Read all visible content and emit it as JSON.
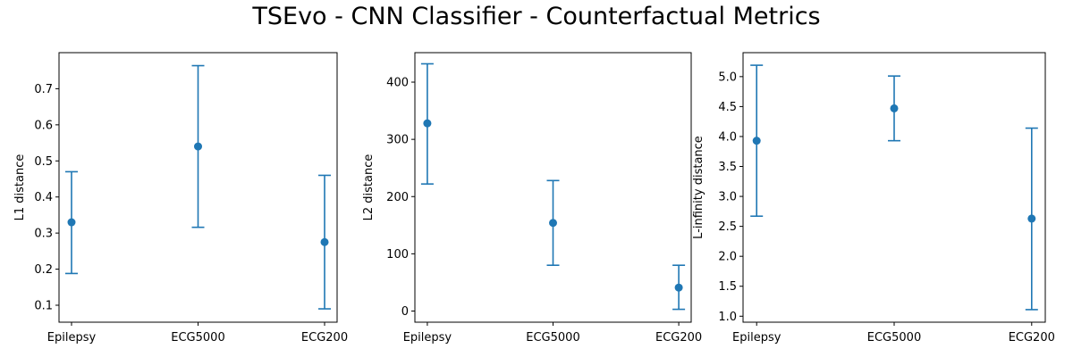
{
  "figure": {
    "title": "TSEvo - CNN Classifier - Counterfactual Metrics"
  },
  "colors": {
    "series": "#1f77b4",
    "axis": "#000000"
  },
  "chart_data": [
    {
      "type": "scatter",
      "ylabel": "L1 distance",
      "categories": [
        "Epilepsy",
        "ECG5000",
        "ECG200"
      ],
      "values": [
        0.33,
        0.54,
        0.275
      ],
      "error_low": [
        0.188,
        0.316,
        0.09
      ],
      "error_high": [
        0.47,
        0.764,
        0.46
      ],
      "ylim": [
        0.053,
        0.8
      ],
      "yticks": [
        0.1,
        0.2,
        0.3,
        0.4,
        0.5,
        0.6,
        0.7
      ],
      "ytick_labels": [
        "0.1",
        "0.2",
        "0.3",
        "0.4",
        "0.5",
        "0.6",
        "0.7"
      ],
      "grid": false
    },
    {
      "type": "scatter",
      "ylabel": "L2 distance",
      "categories": [
        "Epilepsy",
        "ECG5000",
        "ECG200"
      ],
      "values": [
        328,
        154,
        41
      ],
      "error_low": [
        222,
        80,
        3
      ],
      "error_high": [
        432,
        228,
        80
      ],
      "ylim": [
        -19.5,
        451.5
      ],
      "yticks": [
        0,
        100,
        200,
        300,
        400
      ],
      "ytick_labels": [
        "0",
        "100",
        "200",
        "300",
        "400"
      ],
      "grid": false
    },
    {
      "type": "scatter",
      "ylabel": "L-infinity distance",
      "categories": [
        "Epilepsy",
        "ECG5000",
        "ECG200"
      ],
      "values": [
        3.93,
        4.47,
        2.63
      ],
      "error_low": [
        2.67,
        3.93,
        1.11
      ],
      "error_high": [
        5.19,
        5.01,
        4.14
      ],
      "ylim": [
        0.9,
        5.4
      ],
      "yticks": [
        1.0,
        1.5,
        2.0,
        2.5,
        3.0,
        3.5,
        4.0,
        4.5,
        5.0
      ],
      "ytick_labels": [
        "1.0",
        "1.5",
        "2.0",
        "2.5",
        "3.0",
        "3.5",
        "4.0",
        "4.5",
        "5.0"
      ],
      "grid": false
    }
  ]
}
